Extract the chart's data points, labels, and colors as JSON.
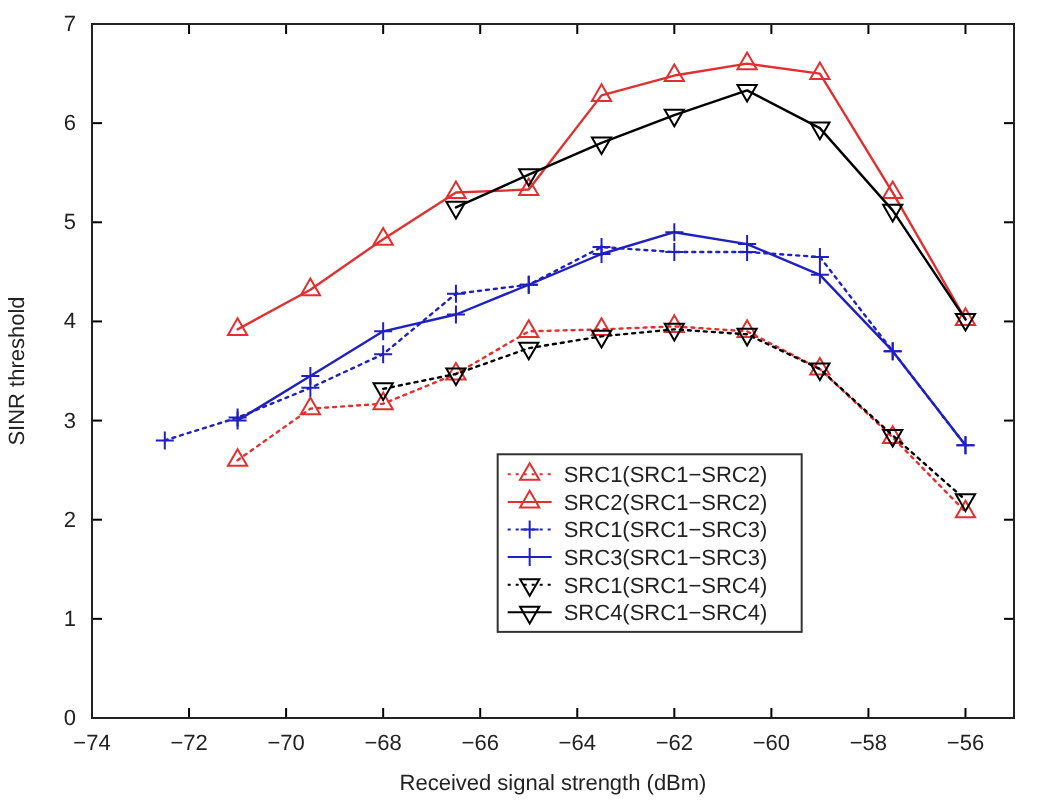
{
  "chart_data": {
    "type": "line",
    "xlabel": "Received signal strength (dBm)",
    "ylabel": "SINR threshold",
    "xlim": [
      -74,
      -55
    ],
    "xticks": [
      -74,
      -72,
      -70,
      -68,
      -66,
      -64,
      -62,
      -60,
      -58,
      -56
    ],
    "ylim": [
      0,
      7
    ],
    "yticks": [
      0,
      1,
      2,
      3,
      4,
      5,
      6,
      7
    ],
    "grid": false,
    "legend": "center right",
    "series": [
      {
        "name": "SRC1(SRC1−SRC2)",
        "color": "#e03030",
        "line_style": "dotted",
        "marker": "triangle",
        "x": [
          -71,
          -69.5,
          -68,
          -66.5,
          -65,
          -63.5,
          -62,
          -60.5,
          -59,
          -57.5,
          -56
        ],
        "values": [
          2.6,
          3.12,
          3.17,
          3.47,
          3.9,
          3.92,
          3.95,
          3.9,
          3.52,
          2.83,
          2.08
        ]
      },
      {
        "name": "SRC2(SRC1−SRC2)",
        "color": "#e03030",
        "line_style": "solid",
        "marker": "triangle",
        "x": [
          -71,
          -69.5,
          -68,
          -66.5,
          -65,
          -63.5,
          -62,
          -60.5,
          -59,
          -57.5,
          -56
        ],
        "values": [
          3.92,
          4.32,
          4.83,
          5.3,
          5.33,
          6.28,
          6.48,
          6.6,
          6.5,
          5.3,
          4.02
        ]
      },
      {
        "name": "SRC1(SRC1−SRC3)",
        "color": "#2020c0",
        "line_style": "dotted",
        "marker": "cross",
        "x": [
          -72.5,
          -71,
          -69.5,
          -68,
          -66.5,
          -65,
          -63.5,
          -62,
          -60.5,
          -59,
          -57.5,
          -56
        ],
        "values": [
          2.8,
          3.03,
          3.33,
          3.67,
          4.28,
          4.37,
          4.75,
          4.7,
          4.7,
          4.65,
          3.7,
          2.75
        ]
      },
      {
        "name": "SRC3(SRC1−SRC3)",
        "color": "#2020c0",
        "line_style": "solid",
        "marker": "cross",
        "x": [
          -71,
          -69.5,
          -68,
          -66.5,
          -65,
          -63.5,
          -62,
          -60.5,
          -59,
          -57.5,
          -56
        ],
        "values": [
          3.0,
          3.45,
          3.9,
          4.07,
          4.37,
          4.68,
          4.9,
          4.78,
          4.47,
          3.7,
          2.75
        ]
      },
      {
        "name": "SRC1(SRC1−SRC4)",
        "color": "#000000",
        "line_style": "dotted",
        "marker": "triangle-down",
        "x": [
          -68,
          -66.5,
          -65,
          -63.5,
          -62,
          -60.5,
          -59,
          -57.5,
          -56
        ],
        "values": [
          3.32,
          3.47,
          3.73,
          3.85,
          3.92,
          3.87,
          3.52,
          2.85,
          2.2
        ]
      },
      {
        "name": "SRC4(SRC1−SRC4)",
        "color": "#000000",
        "line_style": "solid",
        "marker": "triangle-down",
        "x": [
          -66.5,
          -65,
          -63.5,
          -62,
          -60.5,
          -59,
          -57.5,
          -56
        ],
        "values": [
          5.15,
          5.48,
          5.8,
          6.08,
          6.33,
          5.95,
          5.12,
          4.02
        ]
      }
    ]
  }
}
